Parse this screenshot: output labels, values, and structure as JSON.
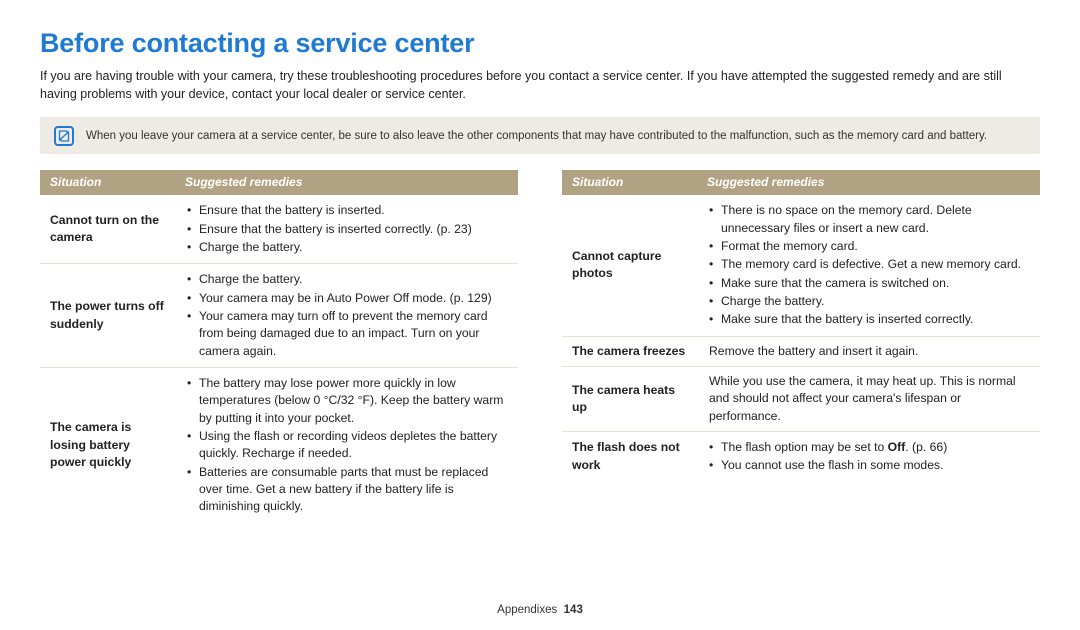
{
  "title": "Before contacting a service center",
  "intro": "If you are having trouble with your camera, try these troubleshooting procedures before you contact a service center. If you have attempted the suggested remedy and are still having problems with your device, contact your local dealer or service center.",
  "note": "When you leave your camera at a service center, be sure to also leave the other components that may have contributed to the malfunction, such as the memory card and battery.",
  "headers": {
    "situation": "Situation",
    "remedies": "Suggested remedies"
  },
  "left_rows": [
    {
      "situation": "Cannot turn on the camera",
      "type": "list",
      "items": [
        "Ensure that the battery is inserted.",
        "Ensure that the battery is inserted correctly. (p. 23)",
        "Charge the battery."
      ]
    },
    {
      "situation": "The power turns off suddenly",
      "type": "list",
      "items": [
        "Charge the battery.",
        "Your camera may be in Auto Power Off mode. (p. 129)",
        "Your camera may turn off to prevent the memory card from being damaged due to an impact. Turn on your camera again."
      ]
    },
    {
      "situation": "The camera is losing battery power quickly",
      "type": "list",
      "items": [
        "The battery may lose power more quickly in low temperatures (below 0 °C/32 °F). Keep the battery warm by putting it into your pocket.",
        "Using the flash or recording videos depletes the battery quickly. Recharge if needed.",
        "Batteries are consumable parts that must be replaced over time. Get a new battery if the battery life is diminishing quickly."
      ]
    }
  ],
  "right_rows": [
    {
      "situation": "Cannot capture photos",
      "type": "list",
      "items": [
        "There is no space on the memory card. Delete unnecessary files or insert a new card.",
        "Format the memory card.",
        "The memory card is defective. Get a new memory card.",
        "Make sure that the camera is switched on.",
        "Charge the battery.",
        "Make sure that the battery is inserted correctly."
      ]
    },
    {
      "situation": "The camera freezes",
      "type": "plain",
      "text": "Remove the battery and insert it again."
    },
    {
      "situation": "The camera heats up",
      "type": "plain",
      "text": "While you use the camera, it may heat up. This is normal and should not affect your camera's lifespan or performance."
    },
    {
      "situation": "The flash does not work",
      "type": "list",
      "items_html": [
        "The flash option may be set to <b class=\"inline\">Off</b>. (p. 66)",
        "You cannot use the flash in some modes."
      ]
    }
  ],
  "footer": {
    "section": "Appendixes",
    "page": "143"
  },
  "colors": {
    "title": "#1f7ad1",
    "header_bg": "#b2a284",
    "note_bg": "#eeeae4",
    "row_border": "#e6e1d7"
  }
}
